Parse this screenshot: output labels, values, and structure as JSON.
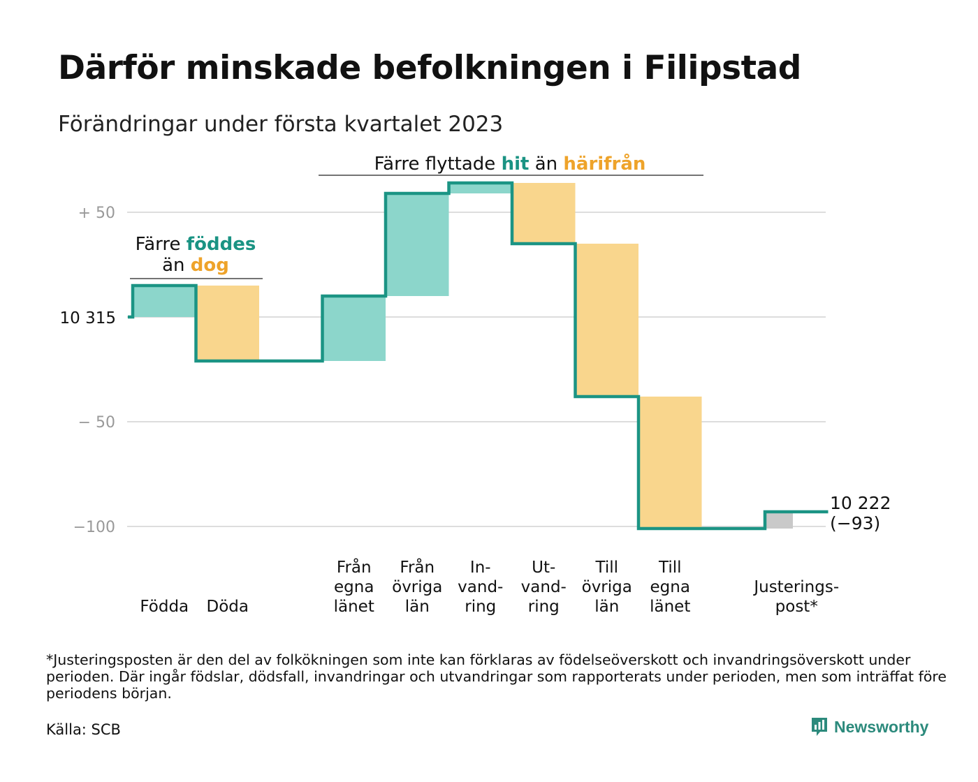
{
  "title": "Därför minskade befolkningen i Filipstad",
  "subtitle": "Förändringar under första kvartalet 2023",
  "footnote": "*Justeringsposten är den del av folkökningen som inte kan förklaras av födelseöverskott och invandringsöverskott under perioden. Där ingår födslar, dödsfall, invandringar och utvandringar som rapporterats under perioden, men som inträffat före periodens början.",
  "source": "Källa: SCB",
  "brand": "Newsworthy",
  "colors": {
    "line": "#1b9484",
    "positive": "#8cd6cb",
    "negative": "#f9d68d",
    "adjustment": "#c9c9c9",
    "teal_text": "#1a9383",
    "orange_text": "#eea32a",
    "grid": "#dddddd",
    "tick": "#999999"
  },
  "chart_data": {
    "type": "waterfall",
    "baseline": 10315,
    "start_label": "10 315",
    "end_label": [
      "10 222",
      "(−93)"
    ],
    "ylim": [
      -100,
      60
    ],
    "yticks": [
      {
        "value": 50,
        "label": "+ 50"
      },
      {
        "value": 0,
        "label": ""
      },
      {
        "value": -50,
        "label": "− 50"
      },
      {
        "value": -100,
        "label": "−100"
      }
    ],
    "steps": [
      {
        "label": [
          "Födda"
        ],
        "delta": 15,
        "kind": "positive"
      },
      {
        "label": [
          "Döda"
        ],
        "delta": -36,
        "kind": "negative"
      },
      {
        "label": [],
        "delta": 0,
        "kind": "gap"
      },
      {
        "label": [
          "Från",
          "egna",
          "länet"
        ],
        "delta": 31,
        "kind": "positive"
      },
      {
        "label": [
          "Från",
          "övriga",
          "län"
        ],
        "delta": 49,
        "kind": "positive"
      },
      {
        "label": [
          "In-",
          "vand-",
          "ring"
        ],
        "delta": 5,
        "kind": "positive"
      },
      {
        "label": [
          "Ut-",
          "vand-",
          "ring"
        ],
        "delta": -29,
        "kind": "negative"
      },
      {
        "label": [
          "Till",
          "övriga",
          "län"
        ],
        "delta": -73,
        "kind": "negative"
      },
      {
        "label": [
          "Till",
          "egna",
          "länet"
        ],
        "delta": -63,
        "kind": "negative"
      },
      {
        "label": [],
        "delta": 0,
        "kind": "gap"
      },
      {
        "label": [
          "Justerings-",
          "post*"
        ],
        "delta": 8,
        "kind": "adjustment"
      }
    ],
    "annotations": [
      {
        "lines": [
          [
            {
              "text": "Färre ",
              "style": "plain"
            },
            {
              "text": "föddes",
              "style": "teal"
            }
          ],
          [
            {
              "text": "än ",
              "style": "plain"
            },
            {
              "text": "dog",
              "style": "orange"
            }
          ]
        ]
      },
      {
        "lines": [
          [
            {
              "text": "Färre flyttade ",
              "style": "plain"
            },
            {
              "text": "hit",
              "style": "teal"
            },
            {
              "text": " än ",
              "style": "plain"
            },
            {
              "text": "härifrån",
              "style": "orange"
            }
          ]
        ]
      }
    ]
  }
}
